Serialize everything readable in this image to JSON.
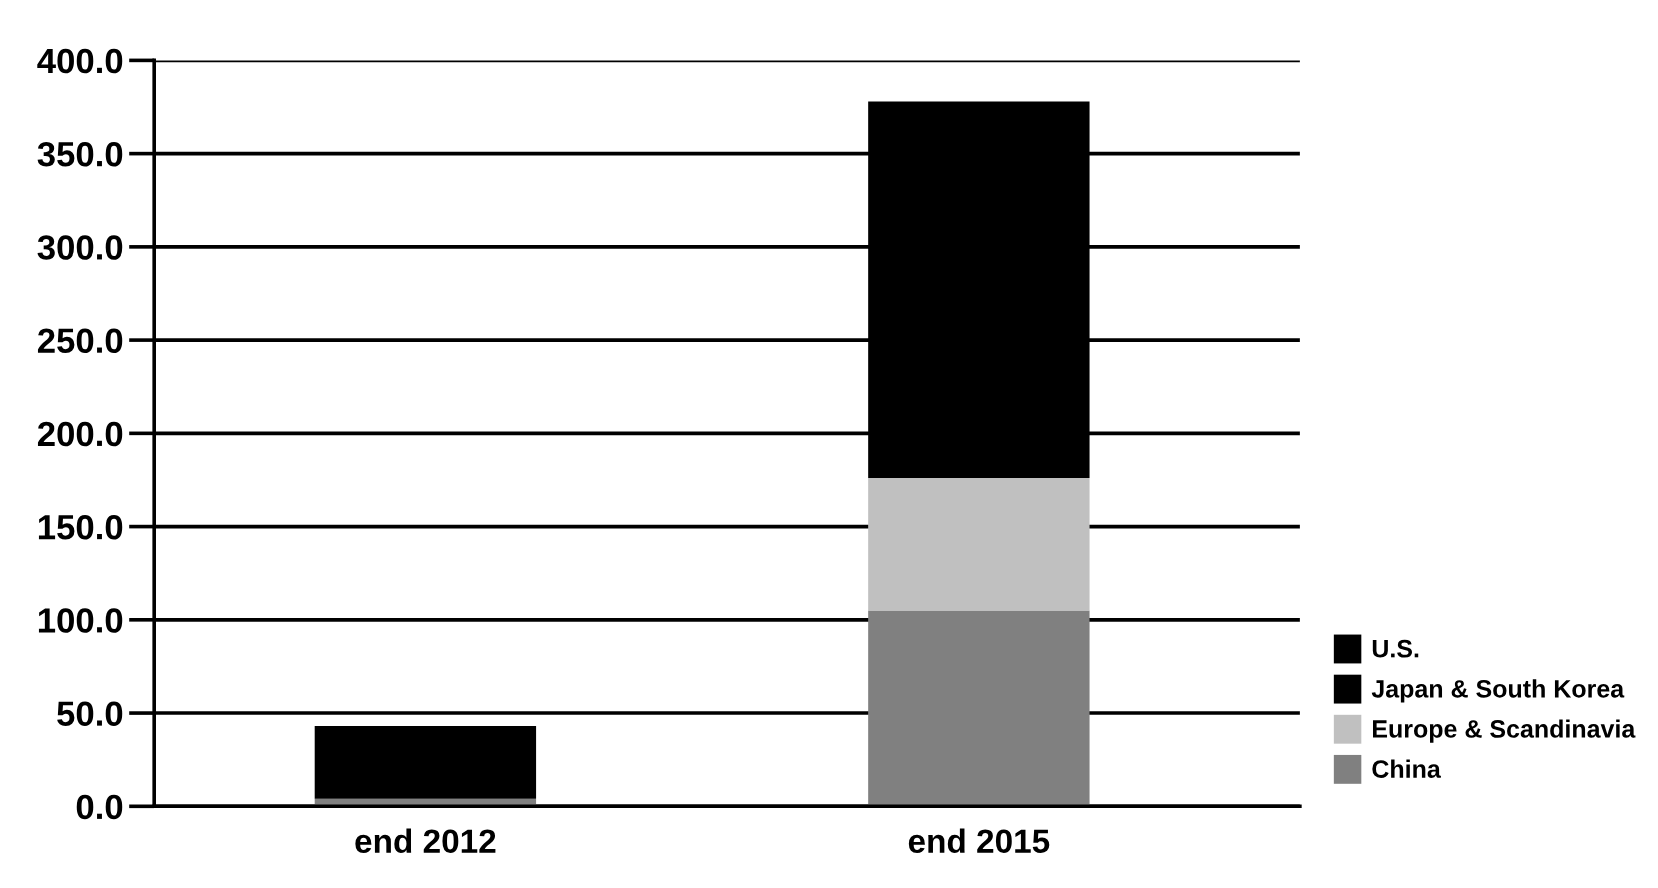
{
  "chart_data": {
    "type": "bar",
    "stacked": true,
    "categories": [
      "end 2012",
      "end 2015"
    ],
    "series": [
      {
        "name": "China",
        "color": "#808080",
        "values": [
          4,
          105
        ]
      },
      {
        "name": "Europe & Scandinavia",
        "color": "#c0c0c0",
        "values": [
          null,
          71
        ]
      },
      {
        "name": "Japan & South Korea",
        "color": "#000000",
        "values": [
          null,
          null
        ]
      },
      {
        "name": "U.S.",
        "color": "#000000",
        "values": [
          39,
          202
        ]
      }
    ],
    "ylim": [
      0,
      400
    ],
    "yticks": [
      {
        "value": 0,
        "label": "0.0"
      },
      {
        "value": 50,
        "label": "50.0"
      },
      {
        "value": 100,
        "label": "100.0"
      },
      {
        "value": 150,
        "label": "150.0"
      },
      {
        "value": 200,
        "label": "200.0"
      },
      {
        "value": 250,
        "label": "250.0"
      },
      {
        "value": 300,
        "label": "300.0"
      },
      {
        "value": 350,
        "label": "350.0"
      },
      {
        "value": 400,
        "label": "400.0"
      }
    ],
    "grid": "y",
    "legend": "bottom right"
  }
}
